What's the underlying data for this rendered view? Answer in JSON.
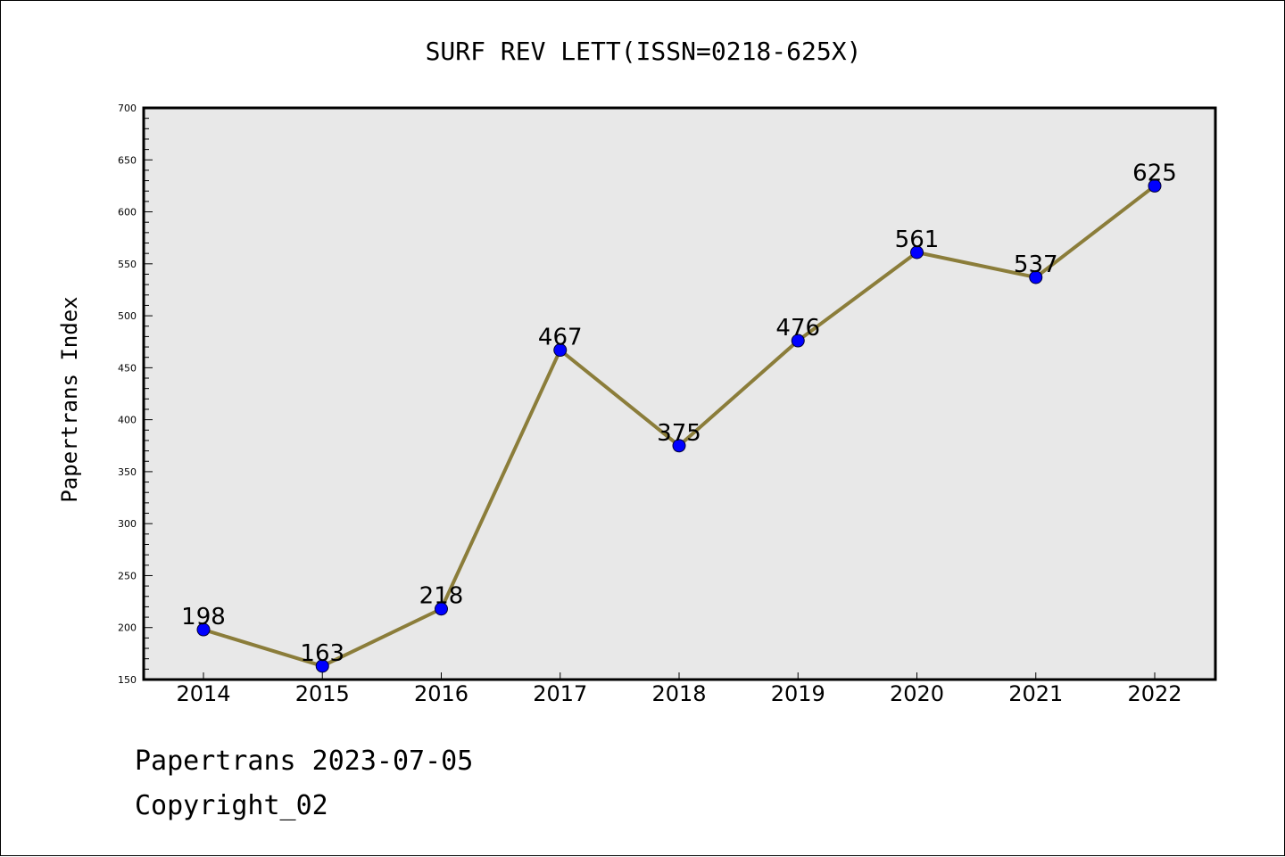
{
  "chart_data": {
    "type": "line",
    "title": "SURF REV LETT(ISSN=0218-625X)",
    "ylabel": "Papertrans Index",
    "xlabel": "",
    "categories": [
      "2014",
      "2015",
      "2016",
      "2017",
      "2018",
      "2019",
      "2020",
      "2021",
      "2022"
    ],
    "values": [
      198,
      163,
      218,
      467,
      375,
      476,
      561,
      537,
      625
    ],
    "data_labels": [
      "198",
      "163",
      "218",
      "467",
      "375",
      "476",
      "561",
      "537",
      "625"
    ],
    "ylim": [
      150,
      700
    ],
    "y_ticks": [
      "150",
      "200",
      "250",
      "300",
      "350",
      "400",
      "450",
      "500",
      "550",
      "600",
      "650",
      "700"
    ],
    "grid": false,
    "legend": "none",
    "colors": {
      "line": "#8b7d3a",
      "marker": "#0000ff",
      "marker_edge": "#000033",
      "plot_background": "#e8e8e8"
    }
  },
  "footer": {
    "line1": "Papertrans 2023-07-05",
    "line2": "Copyright_02"
  }
}
